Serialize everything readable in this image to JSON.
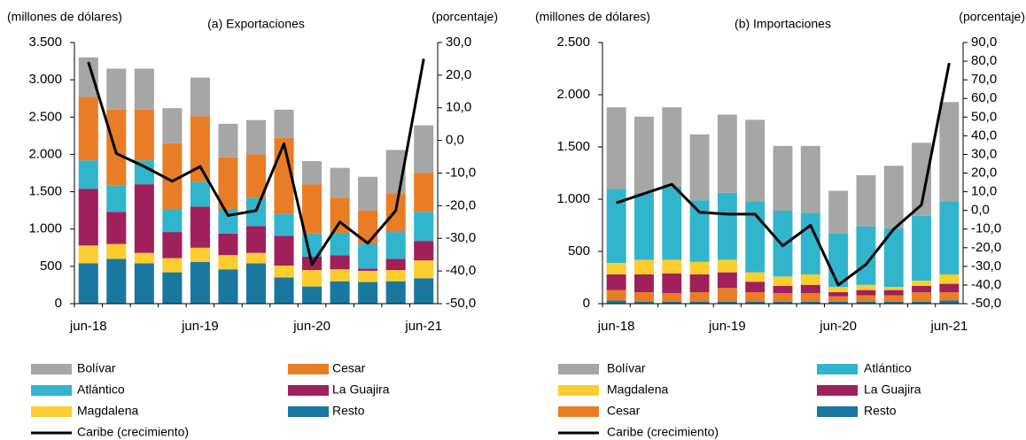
{
  "chart_data": [
    {
      "type": "bar",
      "title": "(a) Exportaciones",
      "y_label": "(millones de dólares)",
      "y2_label": "(porcentaje)",
      "categories": [
        "jun-18",
        null,
        null,
        null,
        "jun-19",
        null,
        null,
        null,
        "jun-20",
        null,
        null,
        null,
        "jun-21"
      ],
      "stacked": true,
      "ylim": [
        0,
        3500
      ],
      "yticks": [
        0,
        500,
        {
          "value": 1000,
          "label": "1.000"
        },
        {
          "value": 1500,
          "label": "1.500"
        },
        {
          "value": 2000,
          "label": "2.000"
        },
        {
          "value": 2500,
          "label": "2.500"
        },
        {
          "value": 3000,
          "label": "3.000"
        },
        {
          "value": 3500,
          "label": "3.500"
        }
      ],
      "y2lim": [
        -50,
        30
      ],
      "y2ticks": [
        {
          "value": -50,
          "label": "-50,0"
        },
        {
          "value": -40,
          "label": "-40,0"
        },
        {
          "value": -30,
          "label": "-30,0"
        },
        {
          "value": -20,
          "label": "-20,0"
        },
        {
          "value": -10,
          "label": "-10,0"
        },
        {
          "value": 0,
          "label": "0,0"
        },
        {
          "value": 10,
          "label": "10,0"
        },
        {
          "value": 20,
          "label": "20,0"
        },
        {
          "value": 30,
          "label": "30,0"
        }
      ],
      "series": [
        {
          "name": "Bolívar",
          "color": "#a6a6a6",
          "values": [
            530,
            550,
            550,
            470,
            520,
            450,
            460,
            380,
            310,
            400,
            450,
            580,
            640
          ]
        },
        {
          "name": "Cesar",
          "color": "#e87d26",
          "values": [
            850,
            1020,
            680,
            880,
            880,
            690,
            580,
            1020,
            660,
            470,
            450,
            520,
            520
          ]
        },
        {
          "name": "Atlántico",
          "color": "#31b5cc",
          "values": [
            380,
            350,
            320,
            310,
            330,
            330,
            380,
            290,
            310,
            300,
            330,
            360,
            390
          ]
        },
        {
          "name": "La Guajira",
          "color": "#a0205c",
          "values": [
            760,
            430,
            920,
            350,
            550,
            290,
            360,
            400,
            180,
            190,
            30,
            150,
            260
          ]
        },
        {
          "name": "Magdalena",
          "color": "#fbcd2f",
          "values": [
            240,
            200,
            140,
            190,
            190,
            190,
            140,
            160,
            220,
            160,
            150,
            150,
            240
          ]
        },
        {
          "name": "Resto",
          "color": "#1a78a0",
          "values": [
            540,
            600,
            540,
            420,
            560,
            460,
            540,
            350,
            230,
            300,
            290,
            300,
            340
          ]
        },
        {
          "name": "Caribe (crecimiento)",
          "color": "#000000",
          "type": "line",
          "axis": "y2",
          "values": [
            24,
            -4,
            -8,
            -12.5,
            -8,
            -23,
            -21.5,
            -1,
            -38,
            -25,
            -31.5,
            -21.5,
            25
          ]
        }
      ]
    },
    {
      "type": "bar",
      "title": "(b) Importaciones",
      "y_label": "(millones de dólares)",
      "y2_label": "(porcentaje)",
      "categories": [
        "jun-18",
        null,
        null,
        null,
        "jun-19",
        null,
        null,
        null,
        "jun-20",
        null,
        null,
        null,
        "jun-21"
      ],
      "stacked": true,
      "ylim": [
        0,
        2500
      ],
      "yticks": [
        0,
        500,
        {
          "value": 1000,
          "label": "1.000"
        },
        {
          "value": 1500,
          "label": "1.500"
        },
        {
          "value": 2000,
          "label": "2.000"
        },
        {
          "value": 2500,
          "label": "2.500"
        }
      ],
      "y2lim": [
        -50,
        90
      ],
      "y2ticks": [
        {
          "value": -50,
          "label": "-50,0"
        },
        {
          "value": -40,
          "label": "-40,0"
        },
        {
          "value": -30,
          "label": "-30,0"
        },
        {
          "value": -20,
          "label": "-20,0"
        },
        {
          "value": -10,
          "label": "-10,0"
        },
        {
          "value": 0,
          "label": "0,0"
        },
        {
          "value": 10,
          "label": "10,0"
        },
        {
          "value": 20,
          "label": "20,0"
        },
        {
          "value": 30,
          "label": "30,0"
        },
        {
          "value": 40,
          "label": "40,0"
        },
        {
          "value": 50,
          "label": "50,0"
        },
        {
          "value": 60,
          "label": "60,0"
        },
        {
          "value": 70,
          "label": "70,0"
        },
        {
          "value": 80,
          "label": "80,0"
        },
        {
          "value": 90,
          "label": "90,0"
        }
      ],
      "series": [
        {
          "name": "Bolívar",
          "color": "#a6a6a6",
          "values": [
            780,
            730,
            760,
            630,
            750,
            780,
            620,
            640,
            410,
            490,
            600,
            700,
            950
          ]
        },
        {
          "name": "Atlántico",
          "color": "#31b5cc",
          "values": [
            710,
            640,
            700,
            590,
            640,
            680,
            630,
            590,
            510,
            560,
            560,
            620,
            700
          ]
        },
        {
          "name": "Magdalena",
          "color": "#fbcd2f",
          "values": [
            110,
            140,
            130,
            120,
            120,
            90,
            90,
            100,
            50,
            50,
            30,
            50,
            90
          ]
        },
        {
          "name": "La Guajira",
          "color": "#a0205c",
          "values": [
            150,
            170,
            190,
            170,
            150,
            100,
            70,
            80,
            40,
            50,
            50,
            60,
            80
          ]
        },
        {
          "name": "Cesar",
          "color": "#e87d26",
          "values": [
            100,
            90,
            80,
            90,
            130,
            90,
            80,
            80,
            50,
            60,
            60,
            90,
            80
          ]
        },
        {
          "name": "Resto",
          "color": "#1a78a0",
          "values": [
            30,
            20,
            20,
            20,
            20,
            20,
            20,
            20,
            20,
            20,
            20,
            20,
            30
          ]
        },
        {
          "name": "Caribe (crecimiento)",
          "color": "#000000",
          "type": "line",
          "axis": "y2",
          "values": [
            4,
            9,
            14,
            -1,
            -2,
            -2,
            -19,
            -8,
            -40,
            -29,
            -10,
            3,
            79
          ]
        }
      ]
    }
  ]
}
